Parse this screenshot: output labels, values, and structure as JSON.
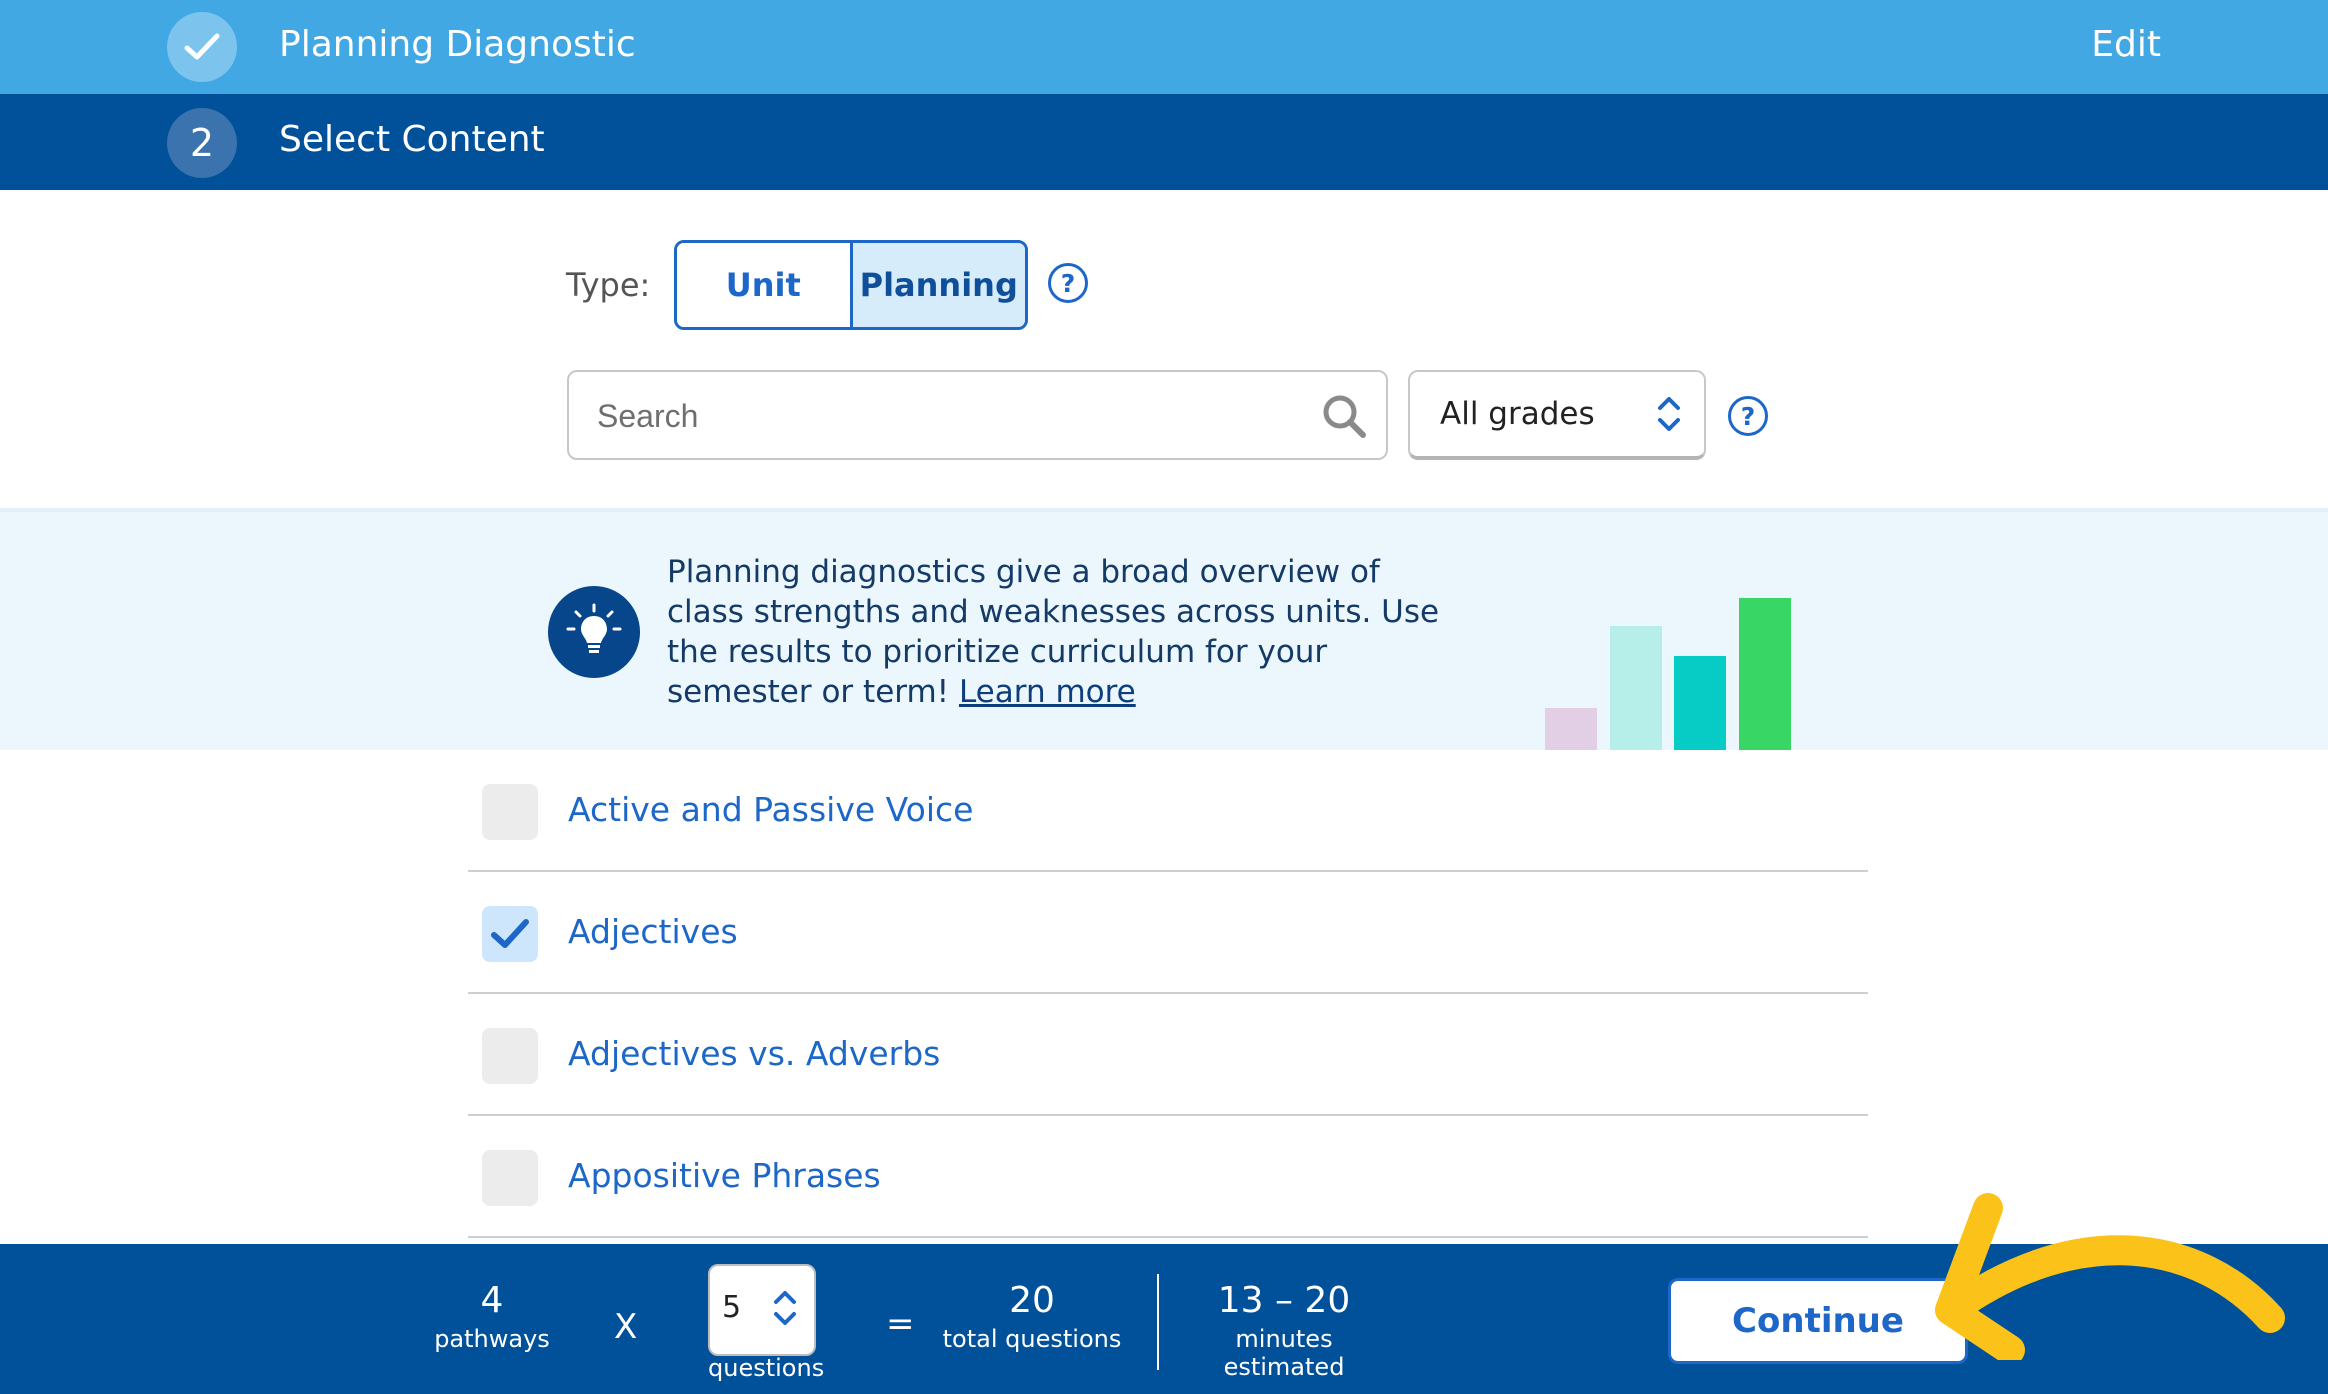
{
  "step1": {
    "title": "Planning Diagnostic",
    "edit_label": "Edit"
  },
  "step2": {
    "number": "2",
    "title": "Select Content"
  },
  "type_selector": {
    "label": "Type:",
    "options": [
      "Unit",
      "Planning"
    ],
    "selected": "Planning"
  },
  "search": {
    "placeholder": "Search",
    "value": ""
  },
  "grades": {
    "selected": "All grades"
  },
  "banner": {
    "text": "Planning diagnostics give a broad overview of class strengths and weaknesses across units. Use the results to prioritize curriculum for your semester or term!",
    "link_text": "Learn more",
    "chart_colors": [
      "#e3cfe5",
      "#b6efe9",
      "#06ccc5",
      "#38d664"
    ]
  },
  "content_items": [
    {
      "label": "Active and Passive Voice",
      "checked": false
    },
    {
      "label": "Adjectives",
      "checked": true
    },
    {
      "label": "Adjectives vs. Adverbs",
      "checked": false
    },
    {
      "label": "Appositive Phrases",
      "checked": false
    }
  ],
  "footer": {
    "pathways_value": "4",
    "pathways_label": "pathways",
    "times_symbol": "X",
    "questions_value": "5",
    "questions_label": "questions",
    "equals_symbol": "=",
    "total_value": "20",
    "total_label": "total questions",
    "minutes_value": "13 – 20",
    "minutes_label": "minutes estimated",
    "continue_label": "Continue"
  },
  "colors": {
    "step1_bg": "#42a8e3",
    "step2_bg": "#005199",
    "accent": "#1c67c8",
    "banner_bg": "#ebf6fd",
    "annotation_arrow": "#fbc31a"
  }
}
